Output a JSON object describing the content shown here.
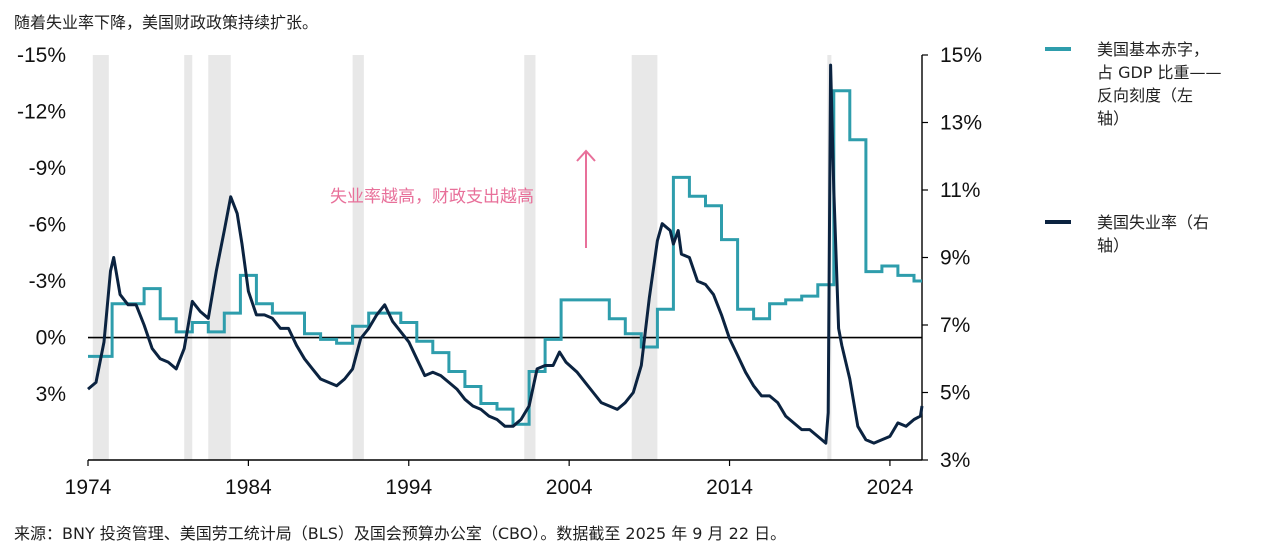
{
  "subtitle": "随着失业率下降，美国财政政策持续扩张。",
  "footer": "来源：BNY 投资管理、美国劳工统计局（BLS）及国会预算办公室（CBO）。数据截至 2025 年 9 月 22 日。",
  "colors": {
    "deficit": "#2e9dac",
    "unemployment": "#0b2340",
    "recession": "#e8e8e8",
    "annotation": "#e8709a"
  },
  "chart_data": {
    "type": "line",
    "x_ticks": [
      1974,
      1984,
      1994,
      2004,
      2014,
      2024
    ],
    "x_tick_labels": [
      "1974",
      "1984",
      "1994",
      "2004",
      "2014",
      "2024"
    ],
    "xlim": [
      1974,
      2026
    ],
    "y_left": {
      "range": [
        -15,
        6.5
      ],
      "inverted": true,
      "ticks": [
        -15,
        -12,
        -9,
        -6,
        -3,
        0,
        3
      ],
      "tick_labels": [
        "-15%",
        "-12%",
        "-9%",
        "-6%",
        "-3%",
        "0%",
        "3%"
      ]
    },
    "y_right": {
      "range": [
        3,
        15
      ],
      "ticks": [
        3,
        5,
        7,
        9,
        11,
        13,
        15
      ],
      "tick_labels": [
        "3%",
        "5%",
        "7%",
        "9%",
        "11%",
        "13%",
        "15%"
      ]
    },
    "recessions": [
      [
        1974.3,
        1975.3
      ],
      [
        1980.0,
        1980.5
      ],
      [
        1981.5,
        1982.9
      ],
      [
        1990.5,
        1991.2
      ],
      [
        2001.2,
        2001.9
      ],
      [
        2007.9,
        2009.5
      ],
      [
        2020.1,
        2020.35
      ]
    ],
    "annotation": "失业率越高，财政支出越高",
    "series": [
      {
        "name": "美国基本赤字，占 GDP 比重——反向刻度（左轴）",
        "axis": "left",
        "step": true,
        "points": [
          [
            1974,
            1.0
          ],
          [
            1975.5,
            1.0
          ],
          [
            1975.5,
            -1.8
          ],
          [
            1977.5,
            -1.8
          ],
          [
            1977.5,
            -2.6
          ],
          [
            1978.5,
            -2.6
          ],
          [
            1978.5,
            -1.0
          ],
          [
            1979.5,
            -1.0
          ],
          [
            1979.5,
            -0.3
          ],
          [
            1980.5,
            -0.3
          ],
          [
            1980.5,
            -0.8
          ],
          [
            1981.5,
            -0.8
          ],
          [
            1981.5,
            -0.3
          ],
          [
            1982.5,
            -0.3
          ],
          [
            1982.5,
            -1.3
          ],
          [
            1983.5,
            -1.3
          ],
          [
            1983.5,
            -3.3
          ],
          [
            1984.5,
            -3.3
          ],
          [
            1984.5,
            -1.8
          ],
          [
            1985.5,
            -1.8
          ],
          [
            1985.5,
            -1.3
          ],
          [
            1987.5,
            -1.3
          ],
          [
            1987.5,
            -0.2
          ],
          [
            1988.5,
            -0.2
          ],
          [
            1988.5,
            0.1
          ],
          [
            1989.5,
            0.1
          ],
          [
            1989.5,
            0.3
          ],
          [
            1990.5,
            0.3
          ],
          [
            1990.5,
            -0.6
          ],
          [
            1991.5,
            -0.6
          ],
          [
            1991.5,
            -1.3
          ],
          [
            1993.5,
            -1.3
          ],
          [
            1993.5,
            -0.8
          ],
          [
            1994.5,
            -0.8
          ],
          [
            1994.5,
            0.2
          ],
          [
            1995.5,
            0.2
          ],
          [
            1995.5,
            0.8
          ],
          [
            1996.5,
            0.8
          ],
          [
            1996.5,
            1.8
          ],
          [
            1997.5,
            1.8
          ],
          [
            1997.5,
            2.6
          ],
          [
            1998.5,
            2.6
          ],
          [
            1998.5,
            3.5
          ],
          [
            1999.5,
            3.5
          ],
          [
            1999.5,
            3.8
          ],
          [
            2000.5,
            3.8
          ],
          [
            2000.5,
            4.6
          ],
          [
            2001.5,
            4.6
          ],
          [
            2001.5,
            1.8
          ],
          [
            2002.5,
            1.8
          ],
          [
            2002.5,
            0.1
          ],
          [
            2003.5,
            0.1
          ],
          [
            2003.5,
            -2.0
          ],
          [
            2006.5,
            -2.0
          ],
          [
            2006.5,
            -1.0
          ],
          [
            2007.5,
            -1.0
          ],
          [
            2007.5,
            -0.2
          ],
          [
            2008.5,
            -0.2
          ],
          [
            2008.5,
            0.5
          ],
          [
            2009.5,
            0.5
          ],
          [
            2009.5,
            -1.5
          ],
          [
            2010.5,
            -1.5
          ],
          [
            2010.5,
            -8.5
          ],
          [
            2011.5,
            -8.5
          ],
          [
            2011.5,
            -7.5
          ],
          [
            2012.5,
            -7.5
          ],
          [
            2012.5,
            -7.0
          ],
          [
            2013.5,
            -7.0
          ],
          [
            2013.5,
            -5.2
          ],
          [
            2014.5,
            -5.2
          ],
          [
            2014.5,
            -1.5
          ],
          [
            2015.5,
            -1.5
          ],
          [
            2015.5,
            -1.0
          ],
          [
            2016.5,
            -1.0
          ],
          [
            2016.5,
            -1.8
          ],
          [
            2017.5,
            -1.8
          ],
          [
            2017.5,
            -2.0
          ],
          [
            2018.5,
            -2.0
          ],
          [
            2018.5,
            -2.2
          ],
          [
            2019.5,
            -2.2
          ],
          [
            2019.5,
            -2.8
          ],
          [
            2020.5,
            -2.8
          ],
          [
            2020.5,
            -13.1
          ],
          [
            2021.5,
            -13.1
          ],
          [
            2021.5,
            -10.5
          ],
          [
            2022.5,
            -10.5
          ],
          [
            2022.5,
            -3.5
          ],
          [
            2023.5,
            -3.5
          ],
          [
            2023.5,
            -3.8
          ],
          [
            2024.5,
            -3.8
          ],
          [
            2024.5,
            -3.3
          ],
          [
            2025.5,
            -3.3
          ],
          [
            2025.5,
            -3.0
          ],
          [
            2026.0,
            -3.0
          ]
        ]
      },
      {
        "name": "美国失业率（右轴）",
        "axis": "right",
        "step": false,
        "points": [
          [
            1974.0,
            5.1
          ],
          [
            1974.5,
            5.3
          ],
          [
            1975.0,
            6.5
          ],
          [
            1975.4,
            8.6
          ],
          [
            1975.6,
            9.0
          ],
          [
            1976.0,
            7.9
          ],
          [
            1976.5,
            7.6
          ],
          [
            1977.0,
            7.6
          ],
          [
            1977.5,
            7.0
          ],
          [
            1978.0,
            6.3
          ],
          [
            1978.5,
            6.0
          ],
          [
            1979.0,
            5.9
          ],
          [
            1979.5,
            5.7
          ],
          [
            1980.0,
            6.3
          ],
          [
            1980.5,
            7.7
          ],
          [
            1981.0,
            7.4
          ],
          [
            1981.5,
            7.2
          ],
          [
            1982.0,
            8.6
          ],
          [
            1982.5,
            9.8
          ],
          [
            1982.9,
            10.8
          ],
          [
            1983.3,
            10.3
          ],
          [
            1983.6,
            9.4
          ],
          [
            1984.0,
            8.0
          ],
          [
            1984.5,
            7.3
          ],
          [
            1985.0,
            7.3
          ],
          [
            1985.5,
            7.2
          ],
          [
            1986.0,
            6.9
          ],
          [
            1986.5,
            6.9
          ],
          [
            1987.0,
            6.4
          ],
          [
            1987.5,
            6.0
          ],
          [
            1988.0,
            5.7
          ],
          [
            1988.5,
            5.4
          ],
          [
            1989.0,
            5.3
          ],
          [
            1989.5,
            5.2
          ],
          [
            1990.0,
            5.4
          ],
          [
            1990.5,
            5.7
          ],
          [
            1991.0,
            6.6
          ],
          [
            1991.5,
            6.9
          ],
          [
            1992.0,
            7.3
          ],
          [
            1992.5,
            7.6
          ],
          [
            1993.0,
            7.1
          ],
          [
            1993.5,
            6.8
          ],
          [
            1994.0,
            6.5
          ],
          [
            1994.5,
            6.0
          ],
          [
            1995.0,
            5.5
          ],
          [
            1995.5,
            5.6
          ],
          [
            1996.0,
            5.5
          ],
          [
            1996.5,
            5.3
          ],
          [
            1997.0,
            5.1
          ],
          [
            1997.5,
            4.8
          ],
          [
            1998.0,
            4.6
          ],
          [
            1998.5,
            4.5
          ],
          [
            1999.0,
            4.3
          ],
          [
            1999.5,
            4.2
          ],
          [
            2000.0,
            4.0
          ],
          [
            2000.5,
            4.0
          ],
          [
            2001.0,
            4.2
          ],
          [
            2001.5,
            4.6
          ],
          [
            2002.0,
            5.7
          ],
          [
            2002.5,
            5.8
          ],
          [
            2003.0,
            5.8
          ],
          [
            2003.4,
            6.2
          ],
          [
            2003.8,
            5.9
          ],
          [
            2004.5,
            5.6
          ],
          [
            2005.0,
            5.3
          ],
          [
            2005.5,
            5.0
          ],
          [
            2006.0,
            4.7
          ],
          [
            2006.5,
            4.6
          ],
          [
            2007.0,
            4.5
          ],
          [
            2007.5,
            4.7
          ],
          [
            2008.0,
            5.0
          ],
          [
            2008.5,
            5.8
          ],
          [
            2009.0,
            7.8
          ],
          [
            2009.5,
            9.5
          ],
          [
            2009.8,
            10.0
          ],
          [
            2010.3,
            9.8
          ],
          [
            2010.5,
            9.4
          ],
          [
            2010.8,
            9.8
          ],
          [
            2011.0,
            9.1
          ],
          [
            2011.5,
            9.0
          ],
          [
            2012.0,
            8.3
          ],
          [
            2012.5,
            8.2
          ],
          [
            2013.0,
            7.9
          ],
          [
            2013.5,
            7.3
          ],
          [
            2014.0,
            6.6
          ],
          [
            2014.5,
            6.1
          ],
          [
            2015.0,
            5.6
          ],
          [
            2015.5,
            5.2
          ],
          [
            2016.0,
            4.9
          ],
          [
            2016.5,
            4.9
          ],
          [
            2017.0,
            4.7
          ],
          [
            2017.5,
            4.3
          ],
          [
            2018.0,
            4.1
          ],
          [
            2018.5,
            3.9
          ],
          [
            2019.0,
            3.9
          ],
          [
            2019.5,
            3.7
          ],
          [
            2020.0,
            3.5
          ],
          [
            2020.15,
            4.4
          ],
          [
            2020.3,
            14.7
          ],
          [
            2020.5,
            11.0
          ],
          [
            2020.8,
            6.9
          ],
          [
            2021.0,
            6.4
          ],
          [
            2021.5,
            5.4
          ],
          [
            2022.0,
            4.0
          ],
          [
            2022.5,
            3.6
          ],
          [
            2023.0,
            3.5
          ],
          [
            2023.5,
            3.6
          ],
          [
            2024.0,
            3.7
          ],
          [
            2024.5,
            4.1
          ],
          [
            2025.0,
            4.0
          ],
          [
            2025.5,
            4.2
          ],
          [
            2025.9,
            4.3
          ],
          [
            2026.0,
            4.6
          ]
        ]
      }
    ]
  }
}
